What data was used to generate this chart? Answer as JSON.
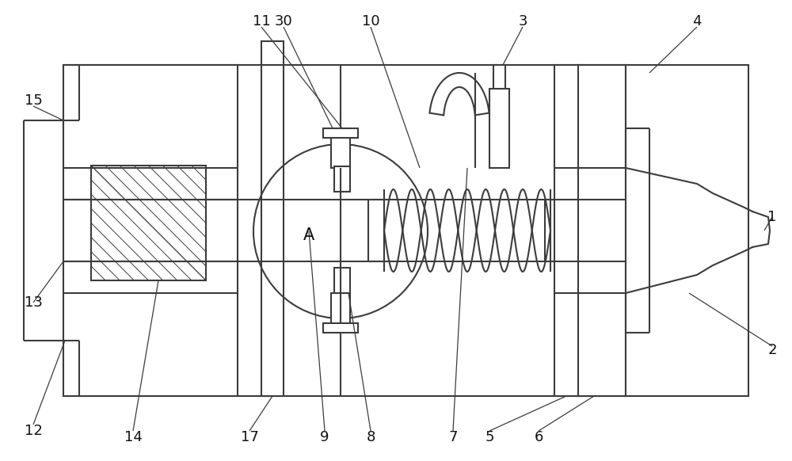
{
  "bg": "#ffffff",
  "lc": "#3c3c3c",
  "lw": 1.5,
  "fw": 10.0,
  "fh": 5.82
}
